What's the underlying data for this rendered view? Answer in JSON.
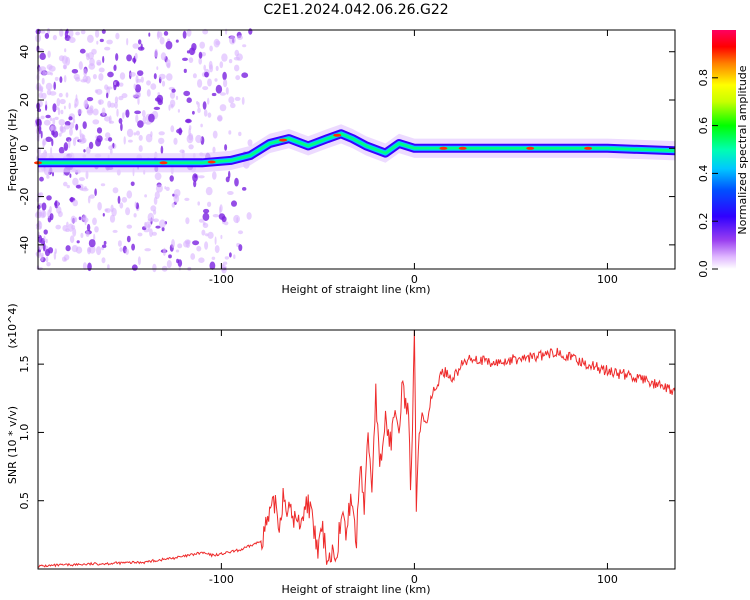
{
  "title": "C2E1.2024.042.06.26.G22",
  "colors": {
    "spectro_low": "#f2e6fb",
    "spectro_mid": "#7a22e0",
    "spectro_ridge_high": "#ff2020",
    "snr_line": "#ee2b2b"
  },
  "chart_data": [
    {
      "type": "heatmap",
      "xlabel": "Height of straight line (km)",
      "ylabel": "Frequency (Hz)",
      "xlim": [
        -195,
        135
      ],
      "ylim": [
        -50,
        49
      ],
      "xticks": [
        -100,
        0,
        100
      ],
      "yticks": [
        -40,
        -20,
        0,
        20,
        40
      ],
      "colorbar": {
        "label": "Normalized spectral amplitude",
        "range": [
          0,
          1
        ],
        "ticks": [
          0.0,
          0.2,
          0.4,
          0.6,
          0.8
        ],
        "colormap": [
          "#ffffff",
          "#d9a6ff",
          "#8a2be2",
          "#3a00ff",
          "#0000ff",
          "#00c8ff",
          "#00ffc0",
          "#00ff00",
          "#c8ff00",
          "#ffff00",
          "#ff8000",
          "#ff0000",
          "#ff0060"
        ]
      },
      "ridge": [
        {
          "x": -195,
          "y": -6
        },
        {
          "x": -150,
          "y": -6
        },
        {
          "x": -110,
          "y": -6
        },
        {
          "x": -95,
          "y": -5
        },
        {
          "x": -85,
          "y": -3
        },
        {
          "x": -75,
          "y": 2
        },
        {
          "x": -65,
          "y": 4
        },
        {
          "x": -55,
          "y": 1
        },
        {
          "x": -45,
          "y": 4
        },
        {
          "x": -38,
          "y": 6
        },
        {
          "x": -32,
          "y": 4
        },
        {
          "x": -25,
          "y": 1
        },
        {
          "x": -15,
          "y": -2
        },
        {
          "x": -8,
          "y": 2
        },
        {
          "x": 0,
          "y": 0
        },
        {
          "x": 15,
          "y": 0
        },
        {
          "x": 60,
          "y": 0
        },
        {
          "x": 100,
          "y": 0
        },
        {
          "x": 135,
          "y": -1
        }
      ]
    },
    {
      "type": "line",
      "xlabel": "Height of straight line (km)",
      "ylabel": "SNR (10 * v/v)",
      "multiplier": "(x10^4)",
      "xlim": [
        -195,
        135
      ],
      "ylim": [
        0,
        1.75
      ],
      "xticks": [
        -100,
        0,
        100
      ],
      "yticks": [
        0.5,
        1.0,
        1.5
      ],
      "series": [
        {
          "x": [
            -195,
            -180,
            -160,
            -140,
            -130,
            -120,
            -110,
            -105,
            -100,
            -90,
            -80,
            -75,
            -72,
            -70,
            -68,
            -65,
            -60,
            -55,
            -50,
            -48,
            -45,
            -40,
            -38,
            -35,
            -33,
            -30,
            -28,
            -26,
            -24,
            -22,
            -20,
            -18,
            -15,
            -12,
            -10,
            -8,
            -6,
            -4,
            -3,
            -2,
            -1,
            0,
            1,
            2,
            4,
            6,
            8,
            10,
            15,
            20,
            25,
            30,
            40,
            50,
            60,
            70,
            75,
            80,
            90,
            100,
            110,
            120,
            130,
            135
          ],
          "y": [
            0.02,
            0.03,
            0.04,
            0.05,
            0.07,
            0.09,
            0.12,
            0.1,
            0.11,
            0.14,
            0.2,
            0.38,
            0.5,
            0.3,
            0.55,
            0.42,
            0.33,
            0.5,
            0.12,
            0.3,
            0.08,
            0.15,
            0.4,
            0.25,
            0.55,
            0.2,
            0.8,
            0.45,
            1.0,
            0.6,
            1.3,
            0.7,
            1.1,
            0.9,
            1.25,
            1.05,
            1.4,
            1.1,
            1.2,
            0.5,
            0.95,
            1.75,
            0.45,
            0.9,
            1.15,
            1.05,
            1.2,
            1.3,
            1.45,
            1.4,
            1.5,
            1.55,
            1.5,
            1.53,
            1.55,
            1.57,
            1.6,
            1.55,
            1.5,
            1.45,
            1.42,
            1.38,
            1.32,
            1.3
          ]
        }
      ]
    }
  ]
}
